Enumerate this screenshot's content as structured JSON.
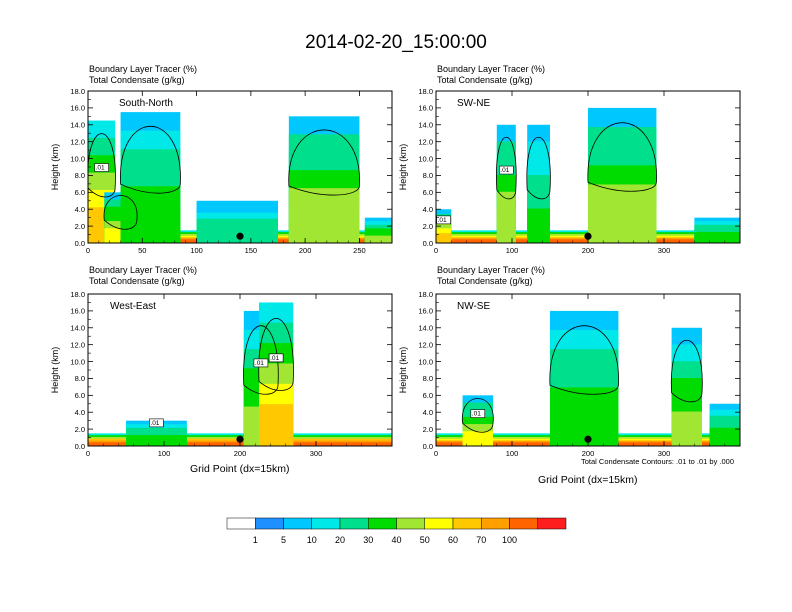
{
  "figure_title": "2014-02-20_15:00:00",
  "panel_subtitle_1": "Boundary Layer Tracer   (%)",
  "panel_subtitle_2": "Total Condensate   (g/kg)",
  "xaxis_label": "Grid Point (dx=15km)",
  "contour_note": "Total Condensate Contours: .01 to .01 by .000",
  "chart_data": [
    {
      "type": "heatmap",
      "label": "South-North",
      "ylabel": "Height (km)",
      "ylim": [
        0,
        18
      ],
      "yticks": [
        "0.0",
        "2.0",
        "4.0",
        "6.0",
        "8.0",
        "10.0",
        "12.0",
        "14.0",
        "16.0",
        "18.0"
      ],
      "xlim": [
        0,
        280
      ],
      "xticks": [
        "0",
        "50",
        "100",
        "150",
        "200",
        "250"
      ],
      "contour_labels": [
        ".01"
      ],
      "features": [
        {
          "x": [
            0,
            280
          ],
          "top": 1.5,
          "peak": 90
        },
        {
          "x": [
            0,
            25
          ],
          "top": 14.5,
          "peak": 70
        },
        {
          "x": [
            15,
            45
          ],
          "top": 6,
          "peak": 55
        },
        {
          "x": [
            30,
            85
          ],
          "top": 15.5,
          "peak": 35
        },
        {
          "x": [
            100,
            175
          ],
          "top": 5,
          "peak": 20
        },
        {
          "x": [
            185,
            250
          ],
          "top": 15,
          "peak": 45
        },
        {
          "x": [
            255,
            280
          ],
          "top": 3,
          "peak": 40
        }
      ]
    },
    {
      "type": "heatmap",
      "label": "SW-NE",
      "ylabel": "Height (km)",
      "ylim": [
        0,
        18
      ],
      "yticks": [
        "0.0",
        "2.0",
        "4.0",
        "6.0",
        "8.0",
        "10.0",
        "12.0",
        "14.0",
        "16.0",
        "18.0"
      ],
      "xlim": [
        0,
        400
      ],
      "xticks": [
        "0",
        "100",
        "200",
        "300"
      ],
      "contour_labels": [
        ".01",
        ".01"
      ],
      "features": [
        {
          "x": [
            0,
            400
          ],
          "top": 1.5,
          "peak": 90
        },
        {
          "x": [
            0,
            20
          ],
          "top": 4,
          "peak": 60
        },
        {
          "x": [
            80,
            105
          ],
          "top": 14,
          "peak": 45
        },
        {
          "x": [
            120,
            150
          ],
          "top": 14,
          "peak": 25
        },
        {
          "x": [
            200,
            290
          ],
          "top": 16,
          "peak": 45
        },
        {
          "x": [
            340,
            400
          ],
          "top": 3,
          "peak": 30
        }
      ]
    },
    {
      "type": "heatmap",
      "label": "West-East",
      "ylabel": "Height (km)",
      "ylim": [
        0,
        18
      ],
      "yticks": [
        "0.0",
        "2.0",
        "4.0",
        "6.0",
        "8.0",
        "10.0",
        "12.0",
        "14.0",
        "16.0",
        "18.0"
      ],
      "xlim": [
        0,
        400
      ],
      "xticks": [
        "0",
        "100",
        "200",
        "300"
      ],
      "contour_labels": [
        ".01",
        ".01",
        ".01",
        ".01"
      ],
      "features": [
        {
          "x": [
            0,
            400
          ],
          "top": 1.5,
          "peak": 95
        },
        {
          "x": [
            50,
            130
          ],
          "top": 3,
          "peak": 30
        },
        {
          "x": [
            205,
            250
          ],
          "top": 16,
          "peak": 40
        },
        {
          "x": [
            225,
            270
          ],
          "top": 17,
          "peak": 70
        }
      ]
    },
    {
      "type": "heatmap",
      "label": "NW-SE",
      "ylabel": "Height (km)",
      "ylim": [
        0,
        18
      ],
      "yticks": [
        "0.0",
        "2.0",
        "4.0",
        "6.0",
        "8.0",
        "10.0",
        "12.0",
        "14.0",
        "16.0",
        "18.0"
      ],
      "xlim": [
        0,
        400
      ],
      "xticks": [
        "0",
        "100",
        "200",
        "300"
      ],
      "contour_labels": [
        ".01"
      ],
      "features": [
        {
          "x": [
            0,
            400
          ],
          "top": 1.5,
          "peak": 90
        },
        {
          "x": [
            35,
            75
          ],
          "top": 6,
          "peak": 50
        },
        {
          "x": [
            150,
            240
          ],
          "top": 16,
          "peak": 35
        },
        {
          "x": [
            310,
            350
          ],
          "top": 14,
          "peak": 40
        },
        {
          "x": [
            360,
            400
          ],
          "top": 5,
          "peak": 30
        }
      ]
    }
  ],
  "colorbar": {
    "labels": [
      "1",
      "5",
      "10",
      "20",
      "30",
      "40",
      "50",
      "60",
      "70",
      "100"
    ],
    "colors": [
      "#ffffff",
      "#1e90ff",
      "#00c8ff",
      "#00e8e8",
      "#00e08c",
      "#00dc00",
      "#a0e632",
      "#ffff00",
      "#ffc800",
      "#ffa000",
      "#ff6400",
      "#ff1e1e"
    ]
  }
}
